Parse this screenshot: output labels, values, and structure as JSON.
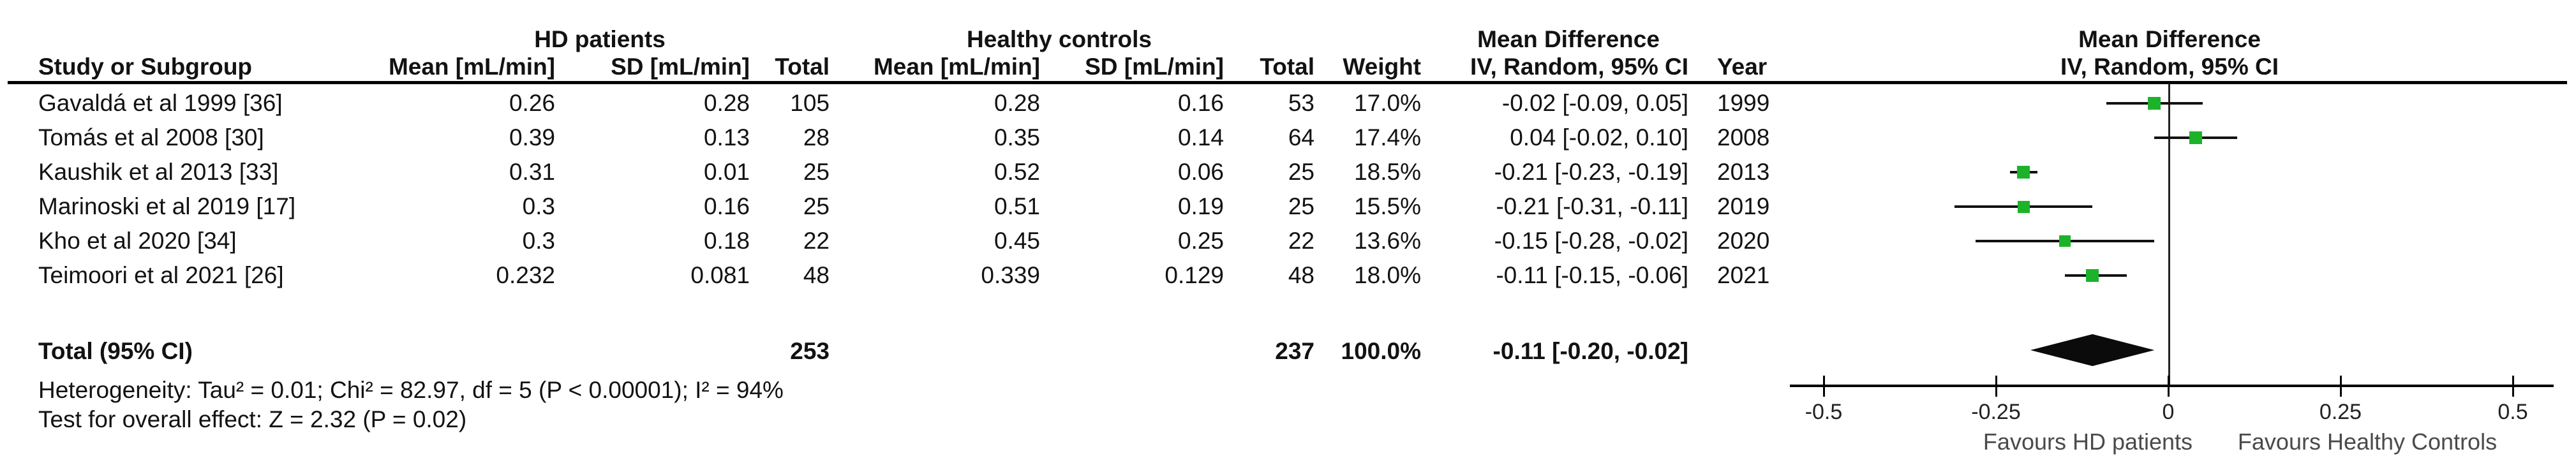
{
  "table": {
    "group_headers": {
      "hd": "HD patients",
      "controls": "Healthy controls",
      "md_text": "Mean Difference",
      "md_plot": "Mean Difference"
    },
    "col_headers": {
      "study": "Study or Subgroup",
      "mean_hd": "Mean [mL/min]",
      "sd_hd": "SD [mL/min]",
      "total_hd": "Total",
      "mean_ctrl": "Mean [mL/min]",
      "sd_ctrl": "SD [mL/min]",
      "total_ctrl": "Total",
      "weight": "Weight",
      "iv": "IV, Random, 95% CI",
      "year": "Year",
      "iv_plot": "IV, Random, 95% CI"
    },
    "rows": [
      {
        "study": "Gavaldá et al 1999 [36]",
        "mean_hd": "0.26",
        "sd_hd": "0.28",
        "total_hd": "105",
        "mean_ctrl": "0.28",
        "sd_ctrl": "0.16",
        "total_ctrl": "53",
        "weight": "17.0%",
        "iv": "-0.02 [-0.09, 0.05]",
        "year": "1999"
      },
      {
        "study": "Tomás et al 2008 [30]",
        "mean_hd": "0.39",
        "sd_hd": "0.13",
        "total_hd": "28",
        "mean_ctrl": "0.35",
        "sd_ctrl": "0.14",
        "total_ctrl": "64",
        "weight": "17.4%",
        "iv": "0.04 [-0.02, 0.10]",
        "year": "2008"
      },
      {
        "study": "Kaushik et al 2013 [33]",
        "mean_hd": "0.31",
        "sd_hd": "0.01",
        "total_hd": "25",
        "mean_ctrl": "0.52",
        "sd_ctrl": "0.06",
        "total_ctrl": "25",
        "weight": "18.5%",
        "iv": "-0.21 [-0.23, -0.19]",
        "year": "2013"
      },
      {
        "study": "Marinoski et al 2019 [17]",
        "mean_hd": "0.3",
        "sd_hd": "0.16",
        "total_hd": "25",
        "mean_ctrl": "0.51",
        "sd_ctrl": "0.19",
        "total_ctrl": "25",
        "weight": "15.5%",
        "iv": "-0.21 [-0.31, -0.11]",
        "year": "2019"
      },
      {
        "study": "Kho et al 2020 [34]",
        "mean_hd": "0.3",
        "sd_hd": "0.18",
        "total_hd": "22",
        "mean_ctrl": "0.45",
        "sd_ctrl": "0.25",
        "total_ctrl": "22",
        "weight": "13.6%",
        "iv": "-0.15 [-0.28, -0.02]",
        "year": "2020"
      },
      {
        "study": "Teimoori et al 2021 [26]",
        "mean_hd": "0.232",
        "sd_hd": "0.081",
        "total_hd": "48",
        "mean_ctrl": "0.339",
        "sd_ctrl": "0.129",
        "total_ctrl": "48",
        "weight": "18.0%",
        "iv": "-0.11 [-0.15, -0.06]",
        "year": "2021"
      }
    ],
    "total_row": {
      "label": "Total (95% CI)",
      "total_hd": "253",
      "total_ctrl": "237",
      "weight": "100.0%",
      "iv": "-0.11 [-0.20, -0.02]"
    }
  },
  "footer": {
    "heterogeneity": "Heterogeneity: Tau² = 0.01; Chi² = 82.97, df = 5 (P < 0.00001); I² = 94%",
    "overall_effect": "Test for overall effect: Z = 2.32 (P = 0.02)"
  },
  "chart_data": {
    "type": "forest",
    "effect_measure": "Mean Difference, IV, Random, 95% CI",
    "unit": "mL/min",
    "studies": [
      {
        "name": "Gavaldá et al 1999 [36]",
        "year": 1999,
        "md": -0.02,
        "ci_lo": -0.09,
        "ci_hi": 0.05,
        "weight_pct": 17.0
      },
      {
        "name": "Tomás et al 2008 [30]",
        "year": 2008,
        "md": 0.04,
        "ci_lo": -0.02,
        "ci_hi": 0.1,
        "weight_pct": 17.4
      },
      {
        "name": "Kaushik et al 2013 [33]",
        "year": 2013,
        "md": -0.21,
        "ci_lo": -0.23,
        "ci_hi": -0.19,
        "weight_pct": 18.5
      },
      {
        "name": "Marinoski et al 2019 [17]",
        "year": 2019,
        "md": -0.21,
        "ci_lo": -0.31,
        "ci_hi": -0.11,
        "weight_pct": 15.5
      },
      {
        "name": "Kho et al 2020 [34]",
        "year": 2020,
        "md": -0.15,
        "ci_lo": -0.28,
        "ci_hi": -0.02,
        "weight_pct": 13.6
      },
      {
        "name": "Teimoori et al 2021 [26]",
        "year": 2021,
        "md": -0.11,
        "ci_lo": -0.15,
        "ci_hi": -0.06,
        "weight_pct": 18.0
      }
    ],
    "total": {
      "md": -0.11,
      "ci_lo": -0.2,
      "ci_hi": -0.02,
      "n_hd": 253,
      "n_ctrl": 237,
      "weight_pct": 100.0
    },
    "axis": {
      "xlim": [
        -0.55,
        0.55
      ],
      "ticks": [
        -0.5,
        -0.25,
        0,
        0.25,
        0.5
      ],
      "tick_labels": [
        "-0.5",
        "-0.25",
        "0",
        "0.25",
        "0.5"
      ],
      "favours_left": "Favours HD patients",
      "favours_right": "Favours Healthy Controls"
    },
    "colors": {
      "marker": "#1cb32b",
      "line": "#121212",
      "diamond": "#0b0b0b"
    }
  }
}
